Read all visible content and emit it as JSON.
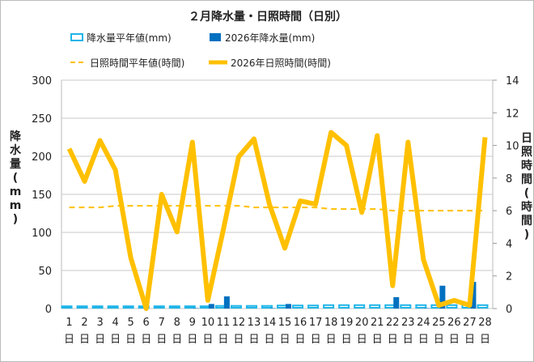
{
  "chart_data": {
    "type": "bar+line",
    "title": "２月降水量・日照時間（日別）",
    "ylabel": "降水量(mm)",
    "y2label": "日照時間(時間)",
    "ylim": [
      0,
      300
    ],
    "yticks": [
      0,
      50,
      100,
      150,
      200,
      250,
      300
    ],
    "y2lim": [
      0,
      14
    ],
    "y2ticks": [
      0,
      2,
      4,
      6,
      8,
      10,
      12,
      14
    ],
    "grid": true,
    "legend_position": "top",
    "categories": [
      "1",
      "2",
      "3",
      "4",
      "5",
      "6",
      "7",
      "8",
      "9",
      "10",
      "11",
      "12",
      "13",
      "14",
      "15",
      "16",
      "17",
      "18",
      "19",
      "20",
      "21",
      "22",
      "23",
      "24",
      "25",
      "26",
      "27",
      "28"
    ],
    "category_suffix": "日",
    "series": [
      {
        "name": "降水量平年値(mm)",
        "type": "bar",
        "axis": "left",
        "style": "hollow",
        "color": "#1fb5e8",
        "values": [
          3,
          3,
          3,
          3,
          3,
          3,
          3,
          3,
          3,
          3,
          3.5,
          3.5,
          3.5,
          3.5,
          4,
          4,
          4,
          4.5,
          4.5,
          4.5,
          4.5,
          4.5,
          4.5,
          4.5,
          4.5,
          4.5,
          4.5,
          4.5
        ]
      },
      {
        "name": "2026年降水量(mm)",
        "type": "bar",
        "axis": "left",
        "color": "#0070c0",
        "values": [
          0,
          0,
          0,
          0,
          0,
          0,
          0,
          0,
          0.5,
          6,
          16,
          0,
          0,
          0.5,
          6,
          0,
          0,
          0,
          0,
          0,
          0,
          15,
          0,
          0.5,
          30,
          0,
          35,
          0
        ]
      },
      {
        "name": "日照時間平年値(時間)",
        "type": "line",
        "axis": "right",
        "style": "dashed",
        "color": "#ffc000",
        "values": [
          6.2,
          6.2,
          6.2,
          6.3,
          6.3,
          6.3,
          6.3,
          6.3,
          6.3,
          6.3,
          6.3,
          6.3,
          6.2,
          6.2,
          6.2,
          6.2,
          6.2,
          6.1,
          6.1,
          6.1,
          6.1,
          6.0,
          6.0,
          6.0,
          6.0,
          6.0,
          6.0,
          6.0
        ]
      },
      {
        "name": "2026年日照時間(時間)",
        "type": "line",
        "axis": "right",
        "color": "#ffc000",
        "values": [
          9.8,
          7.8,
          10.3,
          8.5,
          3.1,
          0,
          7.0,
          4.7,
          10.2,
          0.5,
          4.8,
          9.3,
          10.4,
          6.4,
          3.7,
          6.6,
          6.4,
          10.8,
          10.0,
          5.9,
          10.6,
          1.4,
          10.2,
          3.0,
          0.2,
          0.5,
          0.2,
          10.5
        ]
      }
    ]
  }
}
